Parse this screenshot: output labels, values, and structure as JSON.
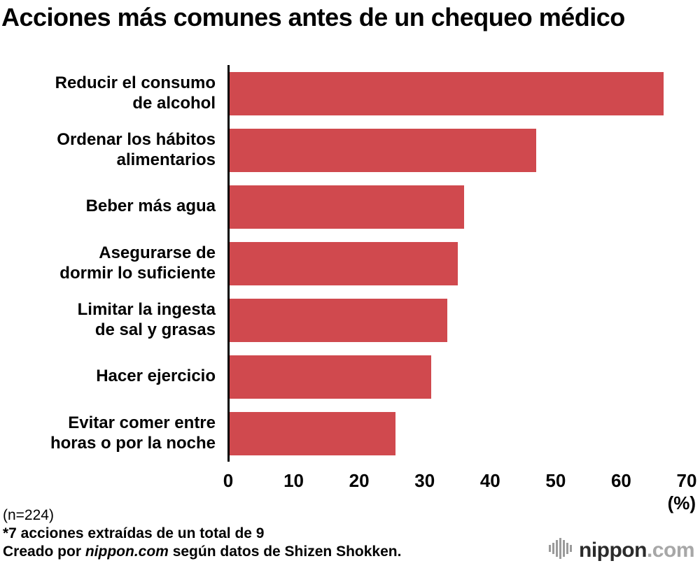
{
  "chart_data": {
    "type": "bar",
    "orientation": "horizontal",
    "title": "Acciones más comunes antes de un chequeo médico",
    "categories": [
      "Reducir el consumo\nde alcohol",
      "Ordenar los hábitos\nalimentarios",
      "Beber más agua",
      "Asegurarse de\ndormir lo suficiente",
      "Limitar la ingesta\nde sal y grasas",
      "Hacer ejercicio",
      "Evitar comer entre\nhoras o por la noche"
    ],
    "values": [
      66.5,
      47,
      36,
      35,
      33.5,
      31,
      25.5
    ],
    "xlabel": "(%)",
    "xlim": [
      0,
      70
    ],
    "xticks": [
      0,
      10,
      20,
      30,
      40,
      50,
      60,
      70
    ],
    "bar_color": "#d0494e",
    "axis_color": "#000000",
    "grid": false,
    "legend": false
  },
  "footer": {
    "line1": "(n=224)",
    "line2": "*7 acciones extraídas de un total de 9",
    "line3_prefix": "Creado por ",
    "line3_italic": "nippon.com",
    "line3_suffix": " según datos de Shizen Shokken."
  },
  "logo": {
    "name": "nippon",
    "tld": ".com",
    "icon": "waveform-icon",
    "icon_color": "#9b9b9b"
  }
}
